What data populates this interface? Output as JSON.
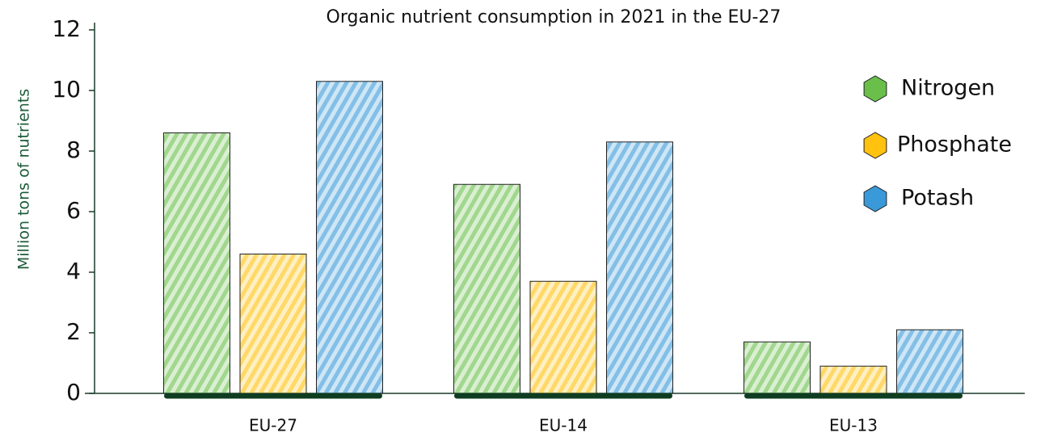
{
  "chart_data": {
    "type": "bar",
    "title": "Organic nutrient consumption in 2021 in the EU-27",
    "y_label": "Million tons of nutrients",
    "categories": [
      "EU-27",
      "EU-14",
      "EU-13"
    ],
    "series": [
      {
        "name": "Nitrogen",
        "color": "#6abf4b",
        "values": [
          8.6,
          6.9,
          1.7
        ]
      },
      {
        "name": "Phosphate",
        "color": "#ffc20e",
        "values": [
          4.6,
          3.7,
          0.9
        ]
      },
      {
        "name": "Potash",
        "color": "#3a9ad9",
        "values": [
          10.3,
          8.3,
          2.1
        ]
      }
    ],
    "ylim": [
      0,
      12
    ],
    "yticks": [
      0,
      2,
      4,
      6,
      8,
      10,
      12
    ],
    "legend": "right"
  }
}
